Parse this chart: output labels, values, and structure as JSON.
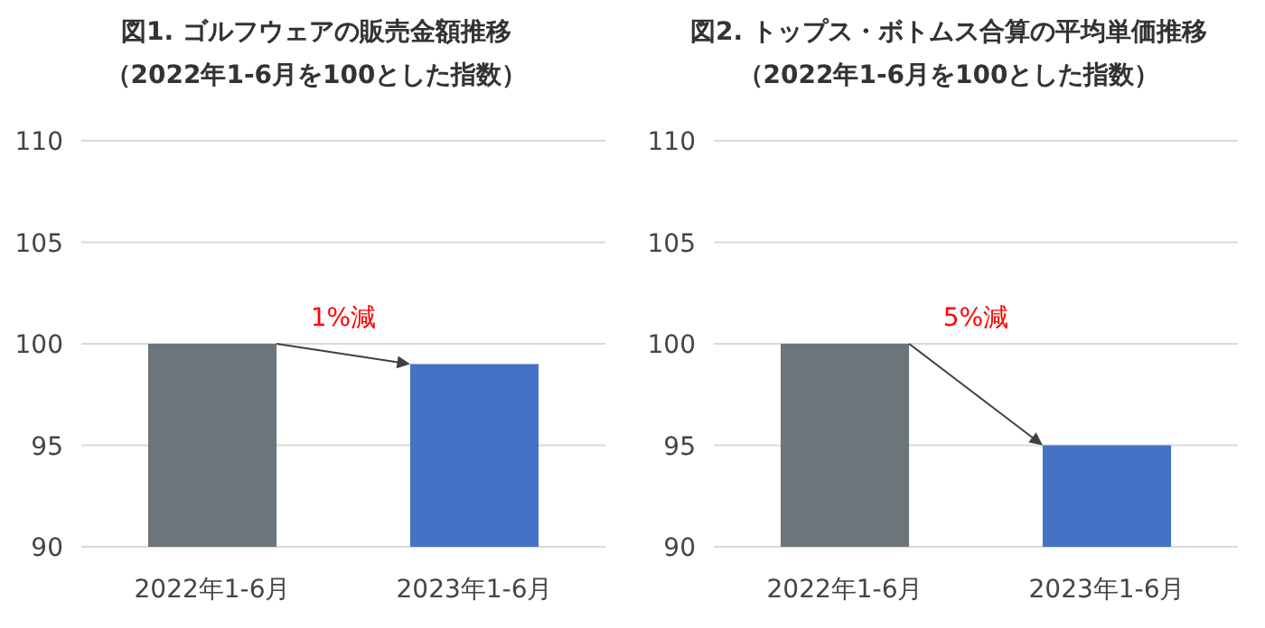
{
  "chart_data": [
    {
      "type": "bar",
      "title": "図1. ゴルフウェアの販売金額推移",
      "subtitle": "（2022年1-6月を100とした指数）",
      "categories": [
        "2022年1-6月",
        "2023年1-6月"
      ],
      "values": [
        100,
        99
      ],
      "colors": [
        "#6c7579",
        "#4472c4"
      ],
      "ylim": [
        90,
        110
      ],
      "yticks": [
        90,
        95,
        100,
        105,
        110
      ],
      "grid": "y",
      "annotations": [
        "1%減"
      ]
    },
    {
      "type": "bar",
      "title": "図2. トップス・ボトムス合算の平均単価推移",
      "subtitle": "（2022年1-6月を100とした指数）",
      "categories": [
        "2022年1-6月",
        "2023年1-6月"
      ],
      "values": [
        100,
        95
      ],
      "colors": [
        "#6c7579",
        "#4472c4"
      ],
      "ylim": [
        90,
        110
      ],
      "yticks": [
        90,
        95,
        100,
        105,
        110
      ],
      "grid": "y",
      "annotations": [
        "5%減"
      ]
    }
  ]
}
